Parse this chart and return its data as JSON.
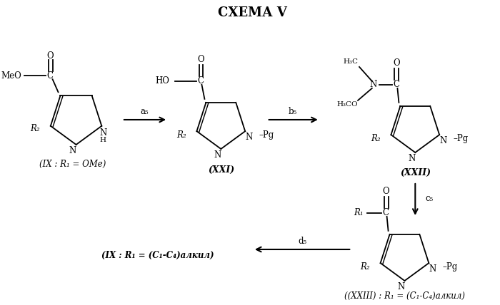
{
  "title": "СХЕМА V",
  "background_color": "#ffffff",
  "figsize": [
    7.0,
    4.28
  ],
  "dpi": 100,
  "text_color": "#000000",
  "structures": {
    "IX_label": "(IX : R₁ = OMe)",
    "XXI_label": "(XXI)",
    "XXII_label": "(XXII)",
    "XXIII_label": "((XXIII) : R₁ = (C₁-C₄)алкил)",
    "IX2_label": "(IX : R₁ = (C₁-C₄)алкил)"
  }
}
